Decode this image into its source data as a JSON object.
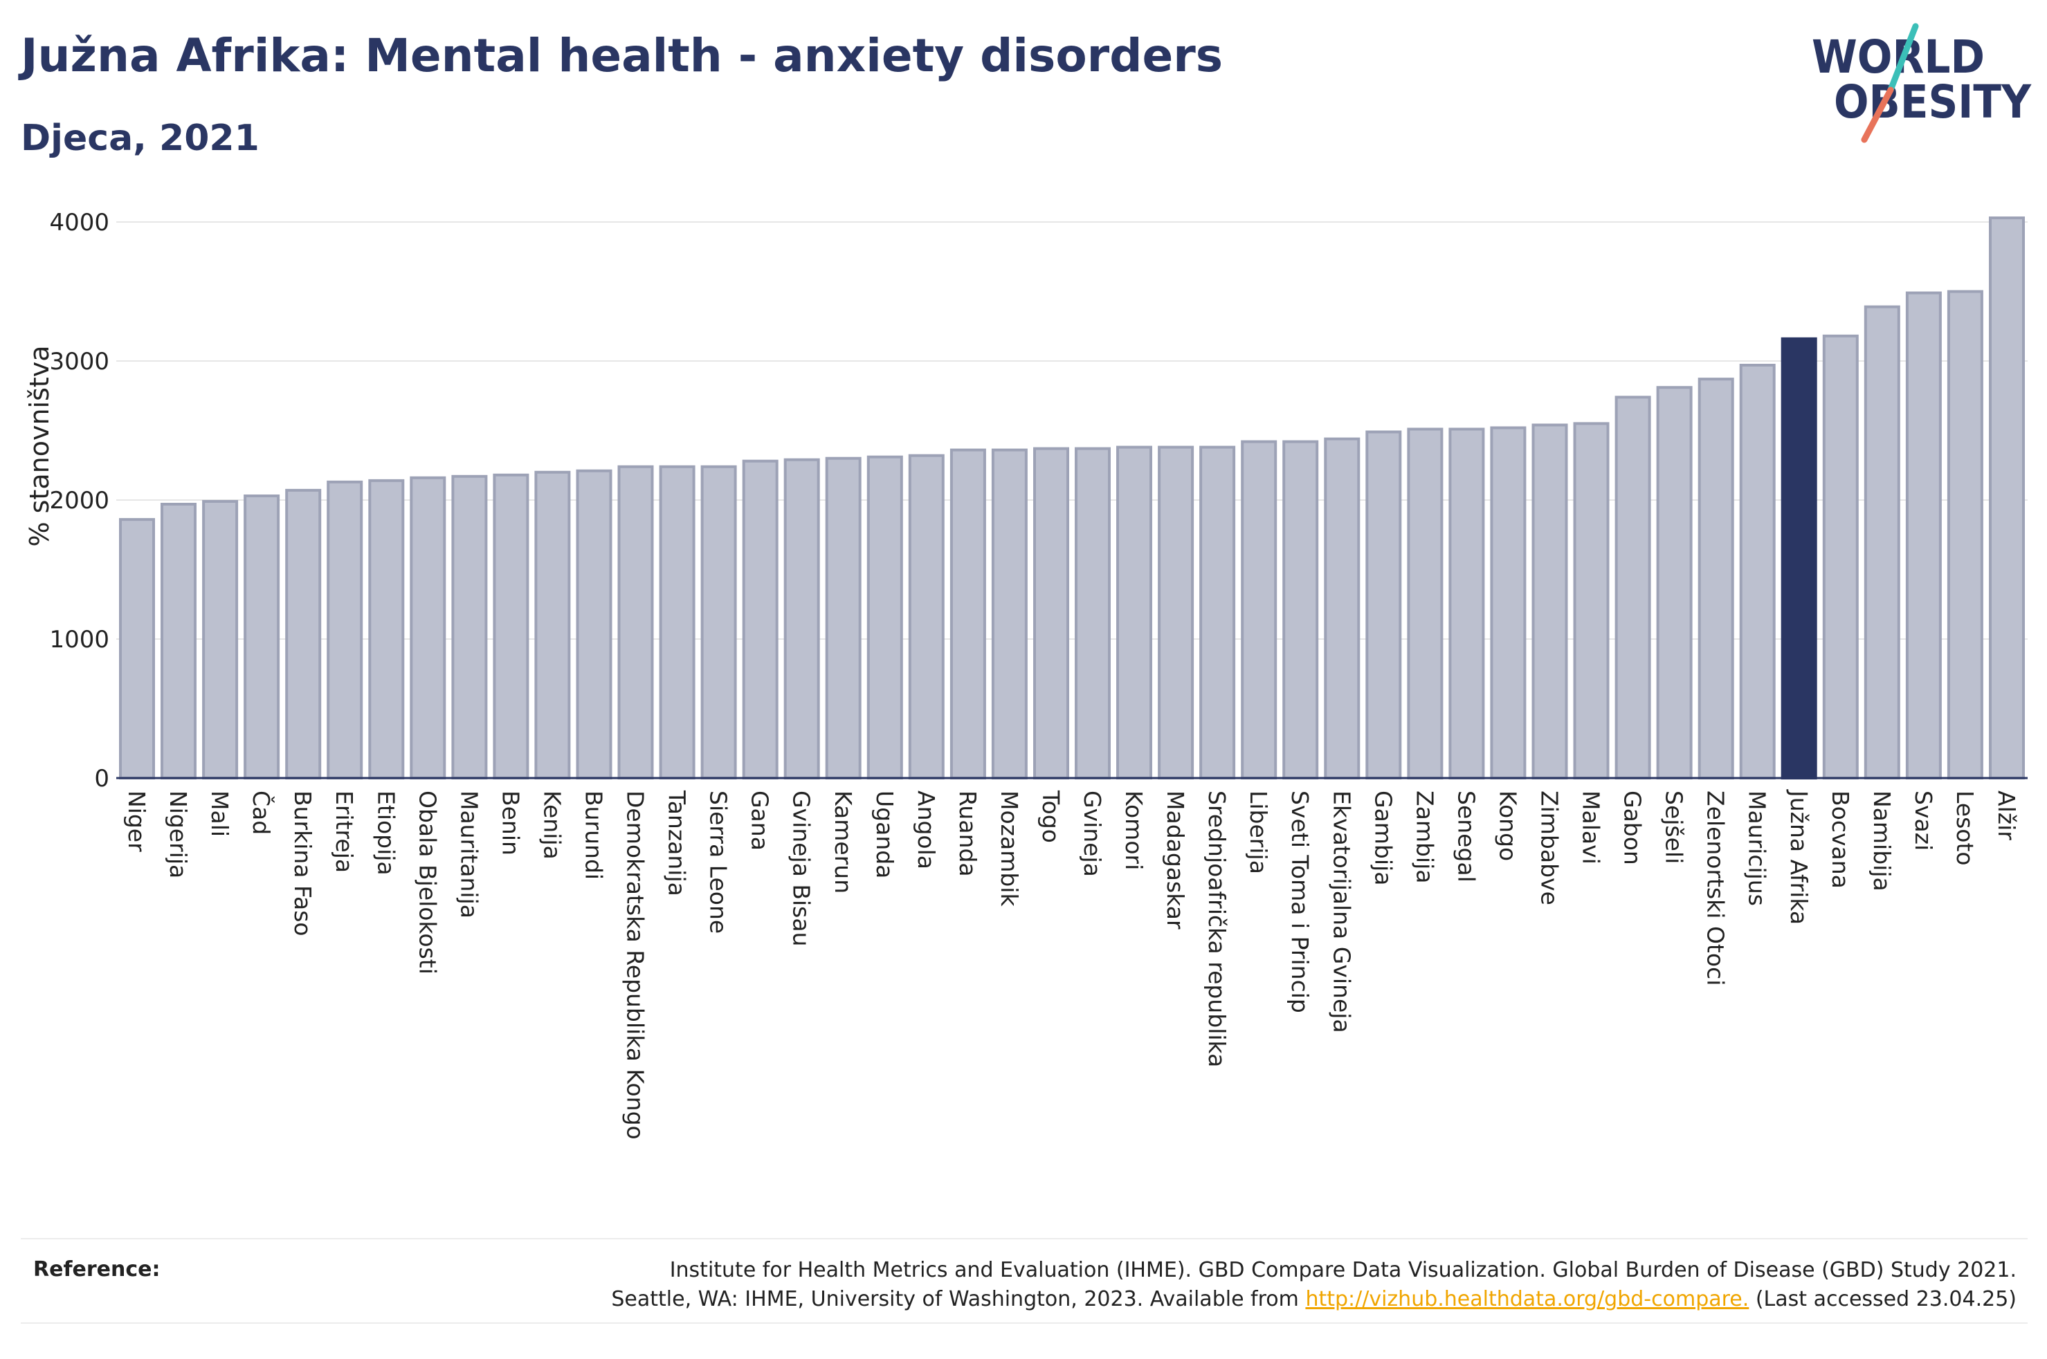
{
  "header": {
    "title": "Južna Afrika: Mental health - anxiety disorders",
    "subtitle": "Djeca, 2021"
  },
  "logo": {
    "line1": "WORLD",
    "line2": "OBESITY",
    "colors": {
      "text": "#2a3663",
      "slash_top": "#3bbfb8",
      "slash_bottom": "#e8735a"
    }
  },
  "colors": {
    "bar": "#bcc0cf",
    "bar_stroke": "#9da2b6",
    "highlight": "#2a3663",
    "grid": "#e6e6e6",
    "axis": "#2a3663"
  },
  "chart_data": {
    "type": "bar",
    "ylabel": "% stanovništva",
    "ylim": [
      0,
      4100
    ],
    "yticks": [
      0,
      1000,
      2000,
      3000,
      4000
    ],
    "grid": true,
    "highlight": "Južna Afrika",
    "categories": [
      "Niger",
      "Nigerija",
      "Mali",
      "Čad",
      "Burkina Faso",
      "Eritreja",
      "Etiopija",
      "Obala Bjelokosti",
      "Mauritanija",
      "Benin",
      "Kenija",
      "Burundi",
      "Demokratska Republika Kongo",
      "Tanzanija",
      "Sierra Leone",
      "Gana",
      "Gvineja Bisau",
      "Kamerun",
      "Uganda",
      "Angola",
      "Ruanda",
      "Mozambik",
      "Togo",
      "Gvineja",
      "Komori",
      "Madagaskar",
      "Srednjoafrička republika",
      "Liberija",
      "Sveti Toma i Princip",
      "Ekvatorijalna Gvineja",
      "Gambija",
      "Zambija",
      "Senegal",
      "Kongo",
      "Zimbabve",
      "Malavi",
      "Gabon",
      "Sejšeli",
      "Zelenortski Otoci",
      "Mauricijus",
      "Južna Afrika",
      "Bocvana",
      "Namibija",
      "Svazi",
      "Lesoto",
      "Alžir"
    ],
    "values": [
      1860,
      1970,
      1990,
      2030,
      2070,
      2130,
      2140,
      2160,
      2170,
      2180,
      2200,
      2210,
      2240,
      2240,
      2240,
      2280,
      2290,
      2300,
      2310,
      2320,
      2360,
      2360,
      2370,
      2370,
      2380,
      2380,
      2380,
      2420,
      2420,
      2440,
      2490,
      2510,
      2510,
      2520,
      2540,
      2550,
      2740,
      2810,
      2870,
      2970,
      3160,
      3180,
      3390,
      3490,
      3500,
      4030
    ]
  },
  "footer": {
    "reference_label": "Reference:",
    "reference_line1": "Institute for Health Metrics and Evaluation (IHME). GBD Compare Data Visualization. Global Burden of Disease (GBD) Study 2021.",
    "reference_line2_prefix": "Seattle, WA: IHME, University of Washington, 2023. Available from",
    "reference_link": "http://vizhub.healthdata.org/gbd-compare.",
    "reference_suffix": "(Last accessed 23.04.25)"
  }
}
